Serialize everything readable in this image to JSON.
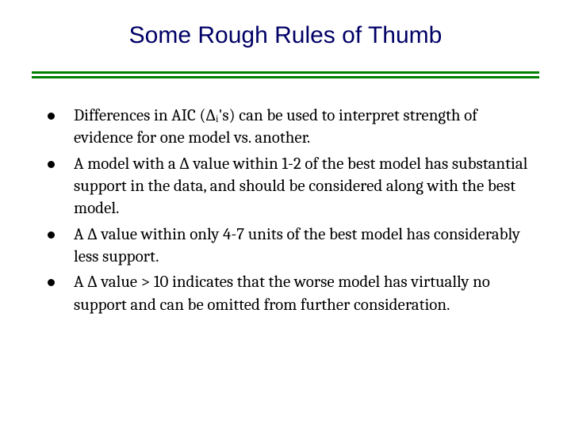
{
  "title": "Some Rough Rules of Thumb",
  "title_color": "#000066",
  "title_fontsize": 30,
  "divider_color": "#008000",
  "bullet_dot_color": "#000000",
  "body_color": "#000000",
  "body_fontsize": 21,
  "background_color": "#ffffff",
  "bullets": [
    "Differences in AIC (∆ᵢ's) can be used to interpret strength of evidence for one model vs. another.",
    "A model with a ∆ value within 1-2 of the best model has substantial support in the data, and should be considered along with the best model.",
    "A ∆ value within only 4-7 units of the best model has considerably less support.",
    "A ∆ value > 10 indicates that the worse model has virtually no support and can be omitted from further consideration."
  ]
}
